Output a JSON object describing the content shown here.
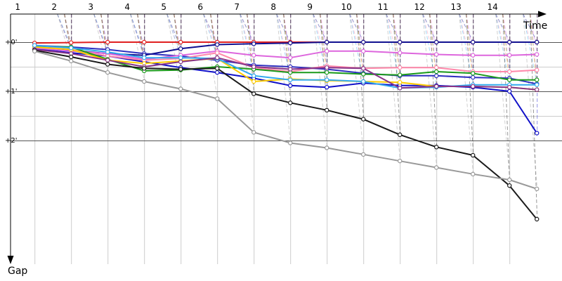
{
  "chart_data": {
    "type": "line",
    "xlabel": "Time",
    "ylabel": "Gap",
    "lap_labels": [
      "1",
      "2",
      "3",
      "4",
      "5",
      "6",
      "7",
      "8",
      "9",
      "10",
      "11",
      "12",
      "13",
      "14"
    ],
    "y_tick_labels": [
      "+0'",
      "+1'",
      "+2'"
    ],
    "xlim": [
      0,
      15.3
    ],
    "ylim_seconds": [
      0,
      138
    ],
    "lap_times": [
      1.35,
      2.35,
      3.35,
      4.35,
      5.35,
      6.35,
      7.35,
      8.35,
      9.35,
      10.35,
      11.35,
      12.35,
      13.35,
      14.35,
      15.3
    ],
    "marker_x": [
      1.35,
      2.35,
      3.35,
      4.35,
      5.35,
      6.35,
      7.35,
      8.35,
      9.35,
      10.35,
      11.35,
      12.35,
      13.35,
      14.35,
      15.1
    ],
    "series": [
      {
        "color": "#e02020",
        "values": [
          1,
          0.5,
          0,
          0,
          0,
          0,
          0,
          0,
          0,
          0,
          0,
          0,
          0,
          0,
          0
        ]
      },
      {
        "color": "#3030c0",
        "values": [
          4,
          6,
          9,
          14,
          17,
          22,
          28,
          30,
          33,
          38,
          41,
          41,
          43,
          44,
          51
        ]
      },
      {
        "color": "#101090",
        "values": [
          6,
          10,
          14,
          16,
          8,
          3,
          2,
          1,
          0,
          0,
          0,
          0,
          0,
          0,
          0
        ]
      },
      {
        "color": "#1010c8",
        "values": [
          8,
          13,
          17,
          24,
          31,
          37,
          44,
          53,
          55,
          50,
          53,
          53,
          55,
          60,
          111
        ]
      },
      {
        "color": "#dd66dd",
        "values": [
          7,
          11,
          14,
          21,
          16,
          11,
          16,
          19,
          11,
          11,
          13,
          15,
          16,
          16,
          15
        ]
      },
      {
        "color": "#ff88aa",
        "values": [
          5,
          9,
          17,
          22,
          20,
          13,
          31,
          36,
          29,
          32,
          31,
          31,
          36,
          36,
          34
        ]
      },
      {
        "color": "#1a9a1a",
        "values": [
          5,
          6,
          21,
          35,
          34,
          30,
          33,
          37,
          37,
          39,
          40,
          36,
          38,
          46,
          46
        ]
      },
      {
        "color": "#ffcc00",
        "values": [
          6,
          9,
          22,
          26,
          23,
          20,
          48,
          45,
          47,
          48,
          49,
          54,
          54,
          55,
          58
        ]
      },
      {
        "color": "#33aaee",
        "values": [
          4,
          7,
          12,
          19,
          19,
          20,
          41,
          46,
          46,
          48,
          56,
          55,
          52,
          52,
          52
        ]
      },
      {
        "color": "#883388",
        "values": [
          9,
          14,
          22,
          30,
          24,
          19,
          30,
          33,
          31,
          32,
          56,
          54,
          54,
          55,
          58
        ]
      },
      {
        "color": "#1a1a1a",
        "values": [
          10,
          18,
          27,
          32,
          33,
          32,
          63,
          74,
          83,
          94,
          113,
          128,
          138,
          175,
          216
        ]
      },
      {
        "color": "#999999",
        "values": [
          11,
          23,
          37,
          48,
          57,
          69,
          110,
          123,
          129,
          137,
          145,
          153,
          161,
          168,
          179
        ]
      }
    ]
  }
}
